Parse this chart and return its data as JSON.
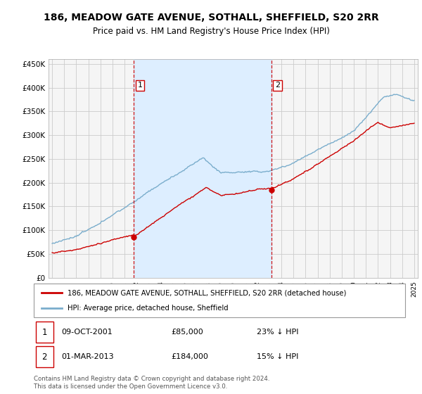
{
  "title": "186, MEADOW GATE AVENUE, SOTHALL, SHEFFIELD, S20 2RR",
  "subtitle": "Price paid vs. HM Land Registry's House Price Index (HPI)",
  "title_fontsize": 10,
  "subtitle_fontsize": 8.5,
  "red_label": "186, MEADOW GATE AVENUE, SOTHALL, SHEFFIELD, S20 2RR (detached house)",
  "blue_label": "HPI: Average price, detached house, Sheffield",
  "sale1_date": "09-OCT-2001",
  "sale1_price": 85000,
  "sale1_hpi_pct": "23% ↓ HPI",
  "sale1_year": 2001.78,
  "sale2_date": "01-MAR-2013",
  "sale2_price": 184000,
  "sale2_hpi_pct": "15% ↓ HPI",
  "sale2_year": 2013.17,
  "footer1": "Contains HM Land Registry data © Crown copyright and database right 2024.",
  "footer2": "This data is licensed under the Open Government Licence v3.0.",
  "ylim_min": 0,
  "ylim_max": 460000,
  "xlim_start": 1994.7,
  "xlim_end": 2025.3,
  "background_color": "#ffffff",
  "plot_bg": "#f5f5f5",
  "grid_color": "#cccccc",
  "shade_color": "#ddeeff",
  "red_color": "#cc0000",
  "blue_color": "#7aadcc",
  "vline_color": "#cc0000",
  "label_box_color": "#cc0000",
  "label_text_color": "#000000"
}
